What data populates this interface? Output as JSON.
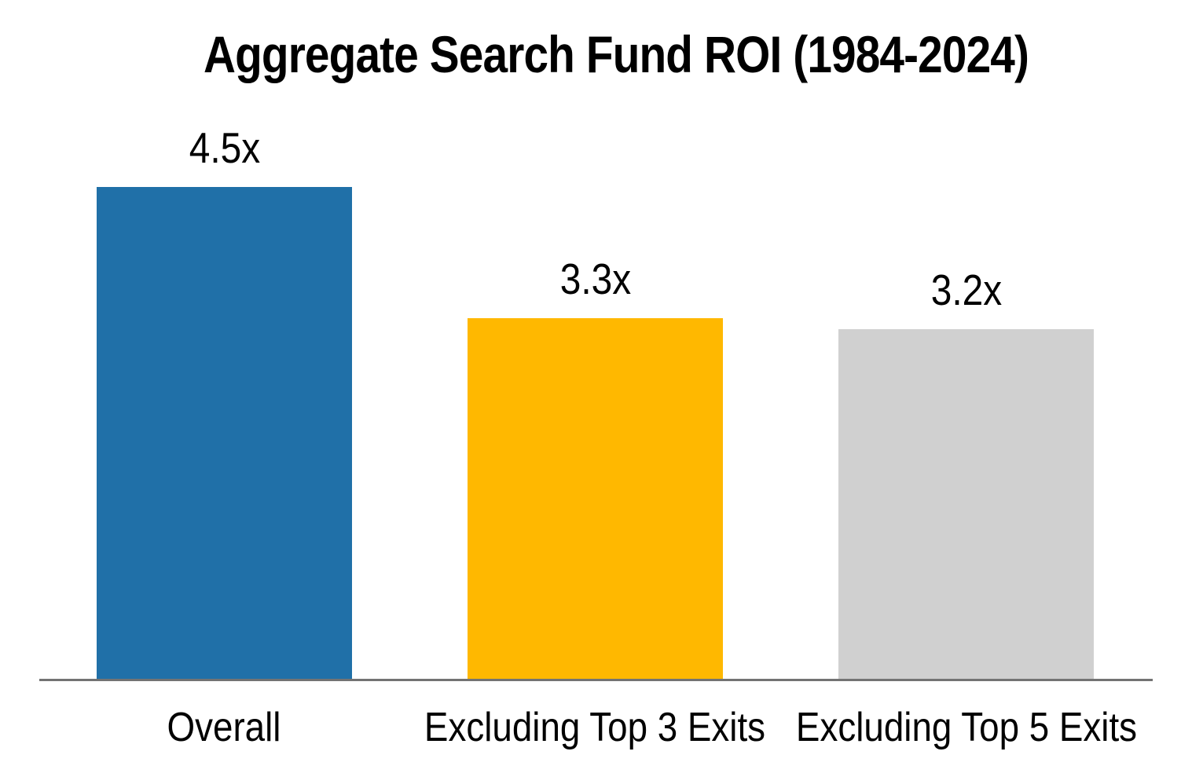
{
  "chart_data": {
    "type": "bar",
    "title": "Aggregate Search Fund ROI (1984-2024)",
    "categories": [
      "Overall",
      "Excluding Top 3 Exits",
      "Excluding Top 5 Exits"
    ],
    "values": [
      4.5,
      3.3,
      3.2
    ],
    "value_labels": [
      "4.5x",
      "3.3x",
      "3.2x"
    ],
    "colors": [
      "#2070A8",
      "#FFB800",
      "#D0D0D0"
    ],
    "axis_color": "#737373",
    "text_color": "#000000",
    "xlabel": "",
    "ylabel": "",
    "ylim": [
      0,
      5
    ],
    "grid": false,
    "legend_position": "none"
  }
}
